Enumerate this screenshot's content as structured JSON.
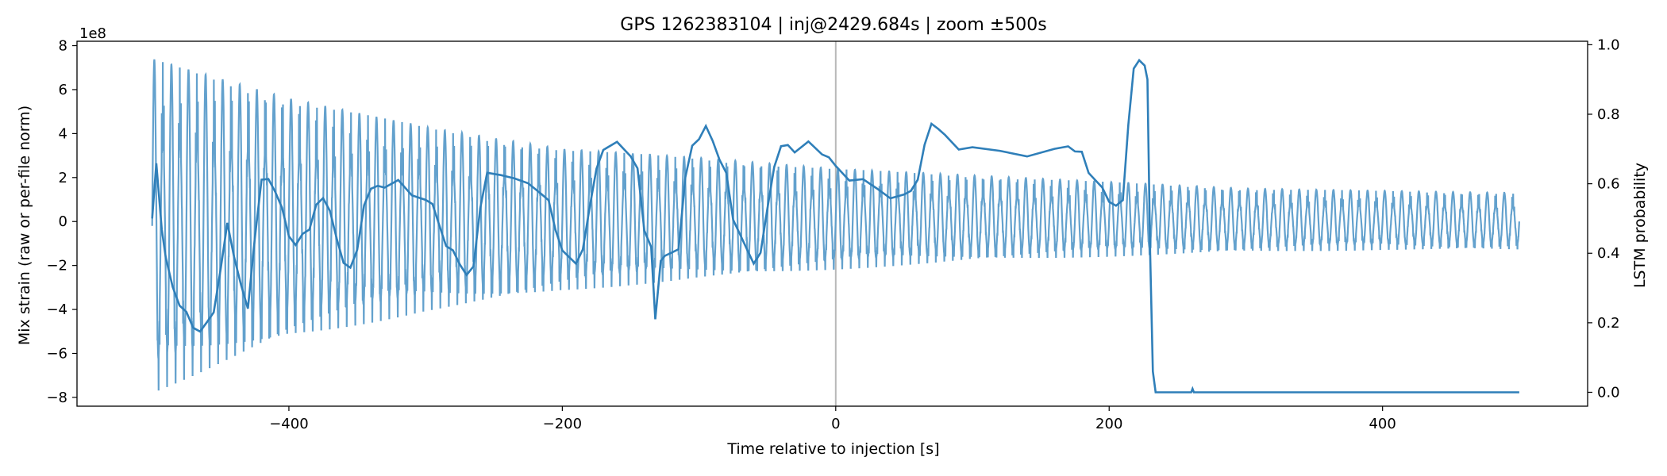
{
  "chart_data": {
    "type": "line",
    "title": "GPS 1262383104 | inj@2429.684s | zoom ±500s",
    "xlabel": "Time relative to injection [s]",
    "ylabel_left": "Mix strain (raw or per-file norm)",
    "ylabel_right": "LSTM probability",
    "left_offset_label": "1e8",
    "xlim": [
      -555,
      550
    ],
    "ylim_left": [
      -8.4,
      8.2
    ],
    "ylim_right": [
      -0.04,
      1.01
    ],
    "x_ticks": [
      -400,
      -200,
      0,
      200,
      400
    ],
    "x_tick_labels": [
      "−400",
      "−200",
      "0",
      "200",
      "400"
    ],
    "y_left_ticks": [
      -8,
      -6,
      -4,
      -2,
      0,
      2,
      4,
      6,
      8
    ],
    "y_left_tick_labels": [
      "−8",
      "−6",
      "−4",
      "−2",
      "0",
      "2",
      "4",
      "6",
      "8"
    ],
    "y_right_ticks": [
      0,
      0.2,
      0.4,
      0.6,
      0.8,
      1.0
    ],
    "y_right_tick_labels": [
      "0.0",
      "0.2",
      "0.4",
      "0.6",
      "0.8",
      "1.0"
    ],
    "injection_marker_x": 0,
    "colors": {
      "strain": "#5b9cca",
      "prob": "#2f7fb9",
      "marker": "#b8b8b8"
    },
    "series": [
      {
        "axis": "left",
        "x_range": [
          -500,
          500
        ],
        "envelope": [
          {
            "x": -500,
            "upper": 7.4,
            "lower": -7.8
          },
          {
            "x": -400,
            "upper": 5.6,
            "lower": -5.4
          },
          {
            "x": -300,
            "upper": 4.3,
            "lower": -4.1
          },
          {
            "x": -200,
            "upper": 3.3,
            "lower": -3.2
          },
          {
            "x": -100,
            "upper": 2.9,
            "lower": -2.6
          },
          {
            "x": 0,
            "upper": 2.4,
            "lower": -2.2
          },
          {
            "x": 100,
            "upper": 2.1,
            "lower": -1.8
          },
          {
            "x": 200,
            "upper": 1.8,
            "lower": -1.6
          },
          {
            "x": 300,
            "upper": 1.5,
            "lower": -1.4
          },
          {
            "x": 400,
            "upper": 1.4,
            "lower": -1.3
          },
          {
            "x": 500,
            "upper": 1.3,
            "lower": -1.3
          }
        ],
        "cycles": 160
      },
      {
        "axis": "right",
        "points": [
          [
            -500,
            0.5
          ],
          [
            -497,
            0.65
          ],
          [
            -493,
            0.48
          ],
          [
            -490,
            0.38
          ],
          [
            -485,
            0.3
          ],
          [
            -480,
            0.26
          ],
          [
            -475,
            0.22
          ],
          [
            -470,
            0.19
          ],
          [
            -465,
            0.18
          ],
          [
            -460,
            0.19
          ],
          [
            -455,
            0.24
          ],
          [
            -450,
            0.35
          ],
          [
            -445,
            0.48
          ],
          [
            -440,
            0.4
          ],
          [
            -435,
            0.3
          ],
          [
            -430,
            0.24
          ],
          [
            -425,
            0.45
          ],
          [
            -420,
            0.6
          ],
          [
            -415,
            0.62
          ],
          [
            -410,
            0.58
          ],
          [
            -405,
            0.52
          ],
          [
            -400,
            0.46
          ],
          [
            -395,
            0.42
          ],
          [
            -390,
            0.45
          ],
          [
            -385,
            0.48
          ],
          [
            -380,
            0.53
          ],
          [
            -375,
            0.56
          ],
          [
            -370,
            0.53
          ],
          [
            -365,
            0.43
          ],
          [
            -360,
            0.38
          ],
          [
            -355,
            0.36
          ],
          [
            -350,
            0.4
          ],
          [
            -345,
            0.55
          ],
          [
            -340,
            0.58
          ],
          [
            -335,
            0.59
          ],
          [
            -330,
            0.6
          ],
          [
            -320,
            0.6
          ],
          [
            -310,
            0.57
          ],
          [
            -300,
            0.56
          ],
          [
            -295,
            0.53
          ],
          [
            -290,
            0.49
          ],
          [
            -285,
            0.42
          ],
          [
            -280,
            0.4
          ],
          [
            -275,
            0.38
          ],
          [
            -270,
            0.33
          ],
          [
            -265,
            0.36
          ],
          [
            -260,
            0.54
          ],
          [
            -255,
            0.62
          ],
          [
            -245,
            0.63
          ],
          [
            -235,
            0.62
          ],
          [
            -225,
            0.59
          ],
          [
            -215,
            0.58
          ],
          [
            -210,
            0.55
          ],
          [
            -205,
            0.46
          ],
          [
            -200,
            0.42
          ],
          [
            -195,
            0.38
          ],
          [
            -190,
            0.37
          ],
          [
            -185,
            0.42
          ],
          [
            -180,
            0.52
          ],
          [
            -175,
            0.65
          ],
          [
            -170,
            0.7
          ],
          [
            -160,
            0.71
          ],
          [
            -150,
            0.69
          ],
          [
            -145,
            0.64
          ],
          [
            -140,
            0.46
          ],
          [
            -135,
            0.43
          ],
          [
            -132,
            0.2
          ],
          [
            -128,
            0.38
          ],
          [
            -125,
            0.4
          ],
          [
            -120,
            0.39
          ],
          [
            -115,
            0.42
          ],
          [
            -110,
            0.62
          ],
          [
            -105,
            0.7
          ],
          [
            -100,
            0.74
          ],
          [
            -95,
            0.76
          ],
          [
            -90,
            0.72
          ],
          [
            -85,
            0.68
          ],
          [
            -80,
            0.62
          ],
          [
            -75,
            0.5
          ],
          [
            -70,
            0.46
          ],
          [
            -65,
            0.4
          ],
          [
            -60,
            0.38
          ],
          [
            -55,
            0.4
          ],
          [
            -50,
            0.52
          ],
          [
            -45,
            0.66
          ],
          [
            -40,
            0.7
          ],
          [
            -35,
            0.71
          ],
          [
            -30,
            0.7
          ],
          [
            -20,
            0.71
          ],
          [
            -10,
            0.69
          ],
          [
            -5,
            0.68
          ],
          [
            0,
            0.64
          ],
          [
            10,
            0.62
          ],
          [
            20,
            0.61
          ],
          [
            30,
            0.58
          ],
          [
            40,
            0.57
          ],
          [
            50,
            0.56
          ],
          [
            55,
            0.58
          ],
          [
            60,
            0.62
          ],
          [
            65,
            0.7
          ],
          [
            70,
            0.78
          ],
          [
            75,
            0.76
          ],
          [
            80,
            0.73
          ],
          [
            90,
            0.71
          ],
          [
            100,
            0.7
          ],
          [
            120,
            0.69
          ],
          [
            140,
            0.69
          ],
          [
            160,
            0.69
          ],
          [
            170,
            0.71
          ],
          [
            175,
            0.7
          ],
          [
            180,
            0.68
          ],
          [
            185,
            0.64
          ],
          [
            190,
            0.61
          ],
          [
            195,
            0.58
          ],
          [
            200,
            0.56
          ],
          [
            205,
            0.53
          ],
          [
            210,
            0.55
          ],
          [
            214,
            0.78
          ],
          [
            218,
            0.92
          ],
          [
            222,
            0.96
          ],
          [
            226,
            0.94
          ],
          [
            228,
            0.9
          ],
          [
            230,
            0.4
          ],
          [
            232,
            0.06
          ],
          [
            234,
            0.0
          ],
          [
            260,
            0.0
          ],
          [
            261,
            0.01
          ],
          [
            262,
            0.0
          ],
          [
            300,
            0.0
          ],
          [
            400,
            0.0
          ],
          [
            500,
            0.0
          ]
        ]
      }
    ]
  }
}
